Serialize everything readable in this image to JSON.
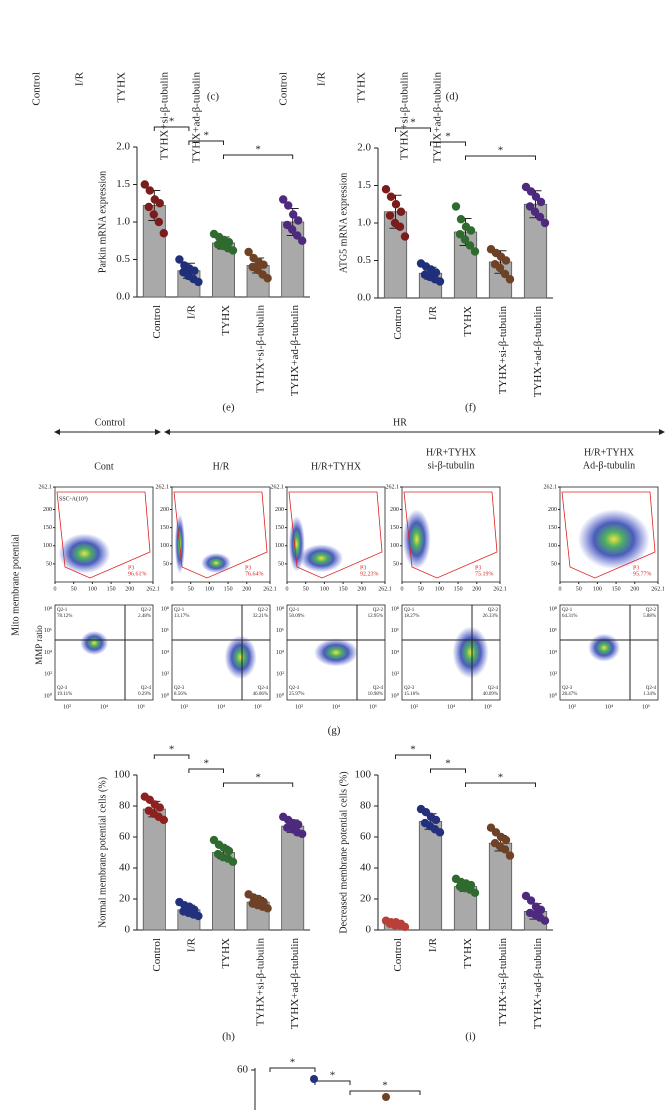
{
  "chart_data": [
    {
      "type": "bar",
      "panel_label": "(e)",
      "ylabel": "Parkin mRNA expression",
      "categories": [
        "Control",
        "I/R",
        "TYHX",
        "TYHX+si-β-tubulin",
        "TYHX+ad-β-tubulin"
      ],
      "colors": [
        "#7b1c1c",
        "#1f2f7a",
        "#2f6a2f",
        "#6e4226",
        "#4e2a7e"
      ],
      "values": [
        1.22,
        0.35,
        0.72,
        0.42,
        1.0
      ],
      "errors": [
        0.2,
        0.1,
        0.08,
        0.1,
        0.18
      ],
      "points": [
        [
          1.5,
          1.42,
          1.3,
          1.25,
          1.2,
          1.1,
          1.0,
          0.85
        ],
        [
          0.5,
          0.42,
          0.38,
          0.35,
          0.33,
          0.28,
          0.24,
          0.2
        ],
        [
          0.84,
          0.8,
          0.76,
          0.73,
          0.7,
          0.68,
          0.65,
          0.62
        ],
        [
          0.6,
          0.52,
          0.47,
          0.43,
          0.4,
          0.36,
          0.3,
          0.25
        ],
        [
          1.3,
          1.22,
          1.1,
          1.02,
          0.96,
          0.9,
          0.82,
          0.75
        ]
      ],
      "ylim": [
        0,
        2.0
      ],
      "yticks": [
        {
          "value": 0,
          "label": "0.0"
        },
        {
          "value": 0.5,
          "label": "0.5"
        },
        {
          "value": 1.0,
          "label": "1.0"
        },
        {
          "value": 1.5,
          "label": "1.5"
        },
        {
          "value": 2.0,
          "label": "2.0"
        }
      ],
      "significance": [
        {
          "from": 0,
          "to": 1,
          "label": "*"
        },
        {
          "from": 1,
          "to": 2,
          "label": "*"
        },
        {
          "from": 2,
          "to": 4,
          "label": "*"
        }
      ]
    },
    {
      "type": "bar",
      "panel_label": "(f)",
      "ylabel": "ATG5 mRNA expression",
      "categories": [
        "Control",
        "I/R",
        "TYHX",
        "TYHX+si-β-tubulin",
        "TYHX+ad-β-tubulin"
      ],
      "colors": [
        "#7b1c1c",
        "#1f2f7a",
        "#2f6a2f",
        "#6e4226",
        "#4e2a7e"
      ],
      "values": [
        1.15,
        0.33,
        0.88,
        0.48,
        1.25
      ],
      "errors": [
        0.22,
        0.08,
        0.18,
        0.15,
        0.18
      ],
      "points": [
        [
          1.45,
          1.35,
          1.25,
          1.15,
          1.1,
          1.0,
          0.95,
          0.82
        ],
        [
          0.46,
          0.42,
          0.38,
          0.34,
          0.31,
          0.28,
          0.25,
          0.22
        ],
        [
          1.22,
          1.05,
          0.95,
          0.9,
          0.85,
          0.78,
          0.7,
          0.62
        ],
        [
          0.65,
          0.6,
          0.55,
          0.5,
          0.45,
          0.4,
          0.32,
          0.25
        ],
        [
          1.48,
          1.42,
          1.35,
          1.28,
          1.22,
          1.15,
          1.08,
          1.0
        ]
      ],
      "ylim": [
        0,
        2.0
      ],
      "yticks": [
        {
          "value": 0,
          "label": "0.0"
        },
        {
          "value": 0.5,
          "label": "0.5"
        },
        {
          "value": 1.0,
          "label": "1.0"
        },
        {
          "value": 1.5,
          "label": "1.5"
        },
        {
          "value": 2.0,
          "label": "2.0"
        }
      ],
      "significance": [
        {
          "from": 0,
          "to": 1,
          "label": "*"
        },
        {
          "from": 1,
          "to": 2,
          "label": "*"
        },
        {
          "from": 2,
          "to": 4,
          "label": "*"
        }
      ]
    },
    {
      "type": "bar",
      "panel_label": "(h)",
      "ylabel": "Normal membrane potential cells (%)",
      "categories": [
        "Control",
        "I/R",
        "TYHX",
        "TYHX+si-β-tubulin",
        "TYHX+ad-β-tubulin"
      ],
      "colors": [
        "#8e2020",
        "#23307e",
        "#2f6a2f",
        "#6e4226",
        "#4e2a7e"
      ],
      "values": [
        78,
        13,
        50,
        18,
        67
      ],
      "errors": [
        5,
        3,
        4,
        3,
        4
      ],
      "points": [
        [
          86,
          84,
          81,
          79,
          77,
          75,
          73,
          71
        ],
        [
          18,
          16,
          15,
          13,
          12,
          11,
          10,
          9
        ],
        [
          58,
          55,
          53,
          51,
          49,
          47,
          46,
          44
        ],
        [
          23,
          21,
          20,
          18,
          17,
          16,
          15,
          14
        ],
        [
          73,
          71,
          69,
          68,
          66,
          65,
          63,
          62
        ]
      ],
      "ylim": [
        0,
        100
      ],
      "yticks": [
        0,
        20,
        40,
        60,
        80,
        100
      ],
      "significance": [
        {
          "from": 0,
          "to": 1,
          "label": "*"
        },
        {
          "from": 1,
          "to": 2,
          "label": "*"
        },
        {
          "from": 2,
          "to": 4,
          "label": "*"
        }
      ]
    },
    {
      "type": "bar",
      "panel_label": "(i)",
      "ylabel": "Decreased membrane potential cells (%)",
      "categories": [
        "Control",
        "I/R",
        "TYHX",
        "TYHX+si-β-tubulin",
        "TYHX+ad-β-tubulin"
      ],
      "colors": [
        "#b8403a",
        "#23307e",
        "#2f6a2f",
        "#6e4226",
        "#4e2a7e"
      ],
      "values": [
        4,
        70,
        28,
        56,
        12
      ],
      "errors": [
        1,
        5,
        3,
        5,
        5
      ],
      "points": [
        [
          6,
          5,
          5,
          4,
          4,
          3,
          3,
          2
        ],
        [
          78,
          76,
          73,
          71,
          69,
          67,
          65,
          63
        ],
        [
          33,
          31,
          30,
          29,
          28,
          27,
          26,
          24
        ],
        [
          66,
          63,
          60,
          58,
          56,
          54,
          52,
          48
        ],
        [
          22,
          19,
          15,
          13,
          11,
          10,
          8,
          6
        ]
      ],
      "ylim": [
        0,
        100
      ],
      "yticks": [
        0,
        20,
        40,
        60,
        80,
        100
      ],
      "significance": [
        {
          "from": 0,
          "to": 1,
          "label": "*"
        },
        {
          "from": 1,
          "to": 2,
          "label": "*"
        },
        {
          "from": 2,
          "to": 4,
          "label": "*"
        }
      ]
    }
  ],
  "top_crop": [
    {
      "panel_label": "(c)",
      "categories": [
        "Control",
        "I/R",
        "TYHX",
        "TYHX+si-β-tubulin",
        "TYHX+ad-β-tubulin"
      ]
    },
    {
      "panel_label": "(d)",
      "categories": [
        "Control",
        "I/R",
        "TYHX",
        "TYHX+si-β-tubulin",
        "TYHX+ad-β-tubulin"
      ]
    }
  ],
  "flow": {
    "panel_label": "(g)",
    "group_control": "Control",
    "group_hr": "HR",
    "side_label": "Mito membrane potential",
    "ssc_label": "SSC-A(10³)",
    "mmp_label": "MMP ratio",
    "scatter_ticks": [
      0,
      50,
      100,
      150,
      200,
      262.1
    ],
    "log_y_ticks": [
      "10⁸",
      "10⁶",
      "10⁴",
      "10²",
      "10⁰"
    ],
    "log_x_ticks": [
      "10²",
      "10⁴",
      "10⁶"
    ],
    "columns": [
      {
        "title": [
          "Cont"
        ],
        "gate": "P3",
        "gate_pct": "96.61%",
        "quadrants": [
          [
            "Q2-1",
            "78.12%"
          ],
          [
            "Q2-2",
            "2.48%"
          ],
          [
            "Q2-3",
            "19.11%"
          ],
          [
            "Q2-4",
            "0.29%"
          ]
        ]
      },
      {
        "title": [
          "H/R"
        ],
        "gate": "P3",
        "gate_pct": "76.64%",
        "quadrants": [
          [
            "Q2-1",
            "13.17%"
          ],
          [
            "Q2-2",
            "32.21%"
          ],
          [
            "Q2-3",
            "8.56%"
          ],
          [
            "Q2-4",
            "46.06%"
          ]
        ]
      },
      {
        "title": [
          "H/R+TYHX"
        ],
        "gate": "P3",
        "gate_pct": "92.23%",
        "quadrants": [
          [
            "Q2-1",
            "50.09%"
          ],
          [
            "Q2-2",
            "12.95%"
          ],
          [
            "Q2-3",
            "25.97%"
          ],
          [
            "Q2-4",
            "10.98%"
          ]
        ]
      },
      {
        "title": [
          "H/R+TYHX",
          "si-β-tubulin"
        ],
        "gate": "P3",
        "gate_pct": "75.19%",
        "quadrants": [
          [
            "Q2-1",
            "18.27%"
          ],
          [
            "Q2-2",
            "26.33%"
          ],
          [
            "Q2-3",
            "15.16%"
          ],
          [
            "Q2-4",
            "40.09%"
          ]
        ]
      },
      {
        "title": [
          "H/R+TYHX",
          "Ad-β-tubulin"
        ],
        "gate": "P3",
        "gate_pct": "95.77%",
        "quadrants": [
          [
            "Q2-1",
            "64.31%"
          ],
          [
            "Q2-2",
            "5.88%"
          ],
          [
            "Q2-3",
            "28.47%"
          ],
          [
            "Q2-4",
            "1.34%"
          ]
        ]
      }
    ]
  },
  "bottom_partial": {
    "yticks": [
      60
    ],
    "stars": [
      "*",
      "*",
      "*"
    ]
  }
}
